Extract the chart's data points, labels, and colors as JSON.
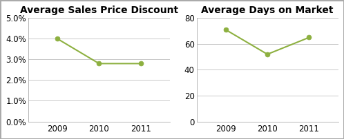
{
  "chart1_title": "Average Sales Price Discount",
  "chart2_title": "Average Days on Market",
  "years": [
    2009,
    2010,
    2011
  ],
  "discount_values": [
    0.04,
    0.028,
    0.028
  ],
  "dom_values": [
    71,
    52,
    65
  ],
  "line_color": "#8DB040",
  "marker_color": "#8DB040",
  "plot_bg_color": "#FFFFFF",
  "fig_bg_color": "#FFFFFF",
  "grid_color": "#C8C8C8",
  "border_color": "#AAAAAA",
  "chart1_ylim": [
    0.0,
    0.05
  ],
  "chart1_yticks": [
    0.0,
    0.01,
    0.02,
    0.03,
    0.04,
    0.05
  ],
  "chart2_ylim": [
    0,
    80
  ],
  "chart2_yticks": [
    0,
    20,
    40,
    60,
    80
  ],
  "title_fontsize": 10,
  "tick_fontsize": 8.5
}
